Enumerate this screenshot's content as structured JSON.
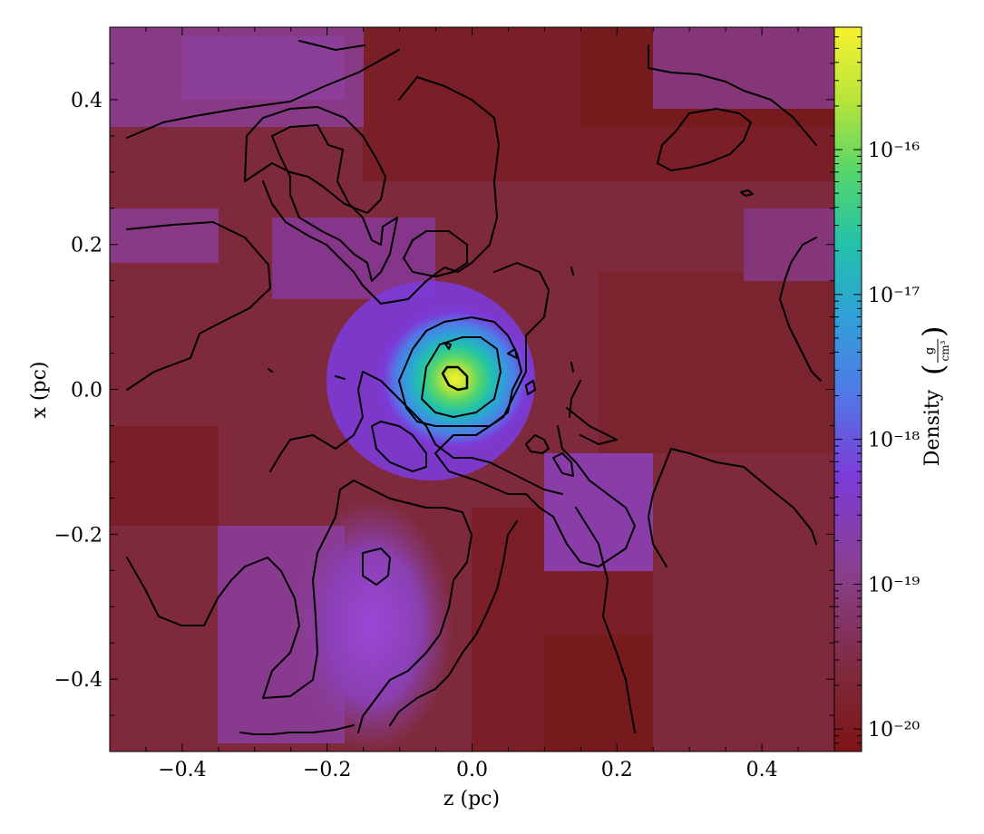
{
  "chart_data": {
    "type": "heatmap",
    "title": "",
    "xlabel": "z  (pc)",
    "ylabel": "x  (pc)",
    "xlim": [
      -0.5,
      0.5
    ],
    "ylim": [
      -0.5,
      0.5
    ],
    "x_ticks": [
      "−0.4",
      "−0.2",
      "0.0",
      "0.2",
      "0.4"
    ],
    "x_tick_values": [
      -0.4,
      -0.2,
      0.0,
      0.2,
      0.4
    ],
    "y_ticks": [
      "0.4",
      "0.2",
      "0.0",
      "−0.2",
      "−0.4"
    ],
    "y_tick_values": [
      0.4,
      0.2,
      0.0,
      -0.2,
      -0.4
    ],
    "colorbar": {
      "label": "Density",
      "unit_numerator": "g",
      "unit_denominator": "cm³",
      "scale": "log",
      "range": [
        7e-21,
        7e-16
      ],
      "ticks": [
        "10⁻¹⁶",
        "10⁻¹⁷",
        "10⁻¹⁸",
        "10⁻¹⁹",
        "10⁻²⁰"
      ],
      "tick_values": [
        1e-16,
        1e-17,
        1e-18,
        1e-19,
        1e-20
      ],
      "colormap": [
        "#7f1416",
        "#7e2a3c",
        "#8a3f8e",
        "#7c3bd8",
        "#4f7be6",
        "#30a0d8",
        "#22c2aa",
        "#56d56b",
        "#b8e43a",
        "#f7f22e"
      ]
    },
    "density_peak": {
      "z": -0.02,
      "x": 0.015,
      "value": 7e-16
    },
    "contours": "black density contour lines at several levels, concentric around the central core"
  }
}
